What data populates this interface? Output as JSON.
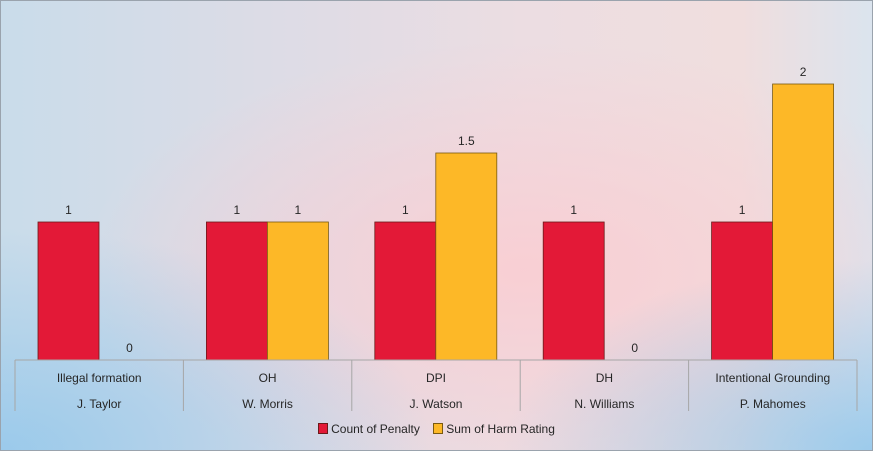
{
  "chart_data": {
    "type": "bar",
    "categories": [
      {
        "penalty": "Illegal formation",
        "player": "J. Taylor"
      },
      {
        "penalty": "OH",
        "player": "W. Morris"
      },
      {
        "penalty": "DPI",
        "player": "J. Watson"
      },
      {
        "penalty": "DH",
        "player": "N. Williams"
      },
      {
        "penalty": "Intentional Grounding",
        "player": "P. Mahomes"
      }
    ],
    "series": [
      {
        "name": "Count of Penalty",
        "values": [
          1,
          1,
          1,
          1,
          1
        ],
        "labels": [
          "1",
          "1",
          "1",
          "1",
          "1"
        ],
        "color": "#E31937"
      },
      {
        "name": "Sum of Harm Rating",
        "values": [
          0,
          1,
          1.5,
          0,
          2
        ],
        "labels": [
          "0",
          "1",
          "1.5",
          "0",
          "2"
        ],
        "color": "#FDB827"
      }
    ],
    "ylim": [
      0,
      2
    ],
    "grid": false,
    "legend_position": "bottom"
  }
}
